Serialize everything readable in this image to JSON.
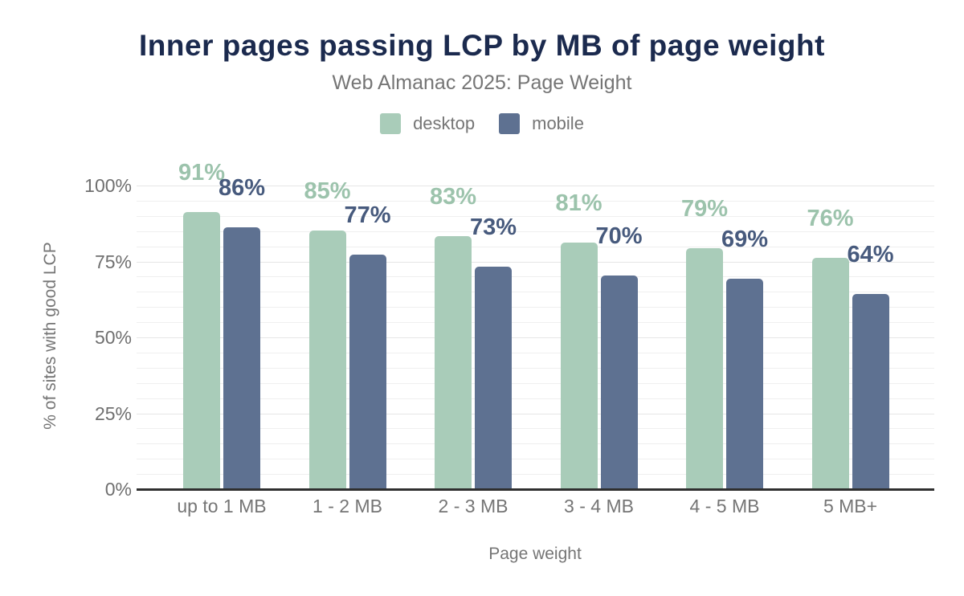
{
  "header": {
    "title": "Inner pages passing LCP by MB of page weight",
    "subtitle": "Web Almanac 2025: Page Weight"
  },
  "legend": {
    "items": [
      {
        "label": "desktop",
        "color": "#a9ccb9"
      },
      {
        "label": "mobile",
        "color": "#5e7191"
      }
    ]
  },
  "chart_data": {
    "type": "bar",
    "title": "Inner pages passing LCP by MB of page weight",
    "subtitle": "Web Almanac 2025: Page Weight",
    "categories": [
      "up to 1 MB",
      "1 - 2 MB",
      "2 - 3 MB",
      "3 - 4 MB",
      "4 - 5 MB",
      "5 MB+"
    ],
    "series": [
      {
        "name": "desktop",
        "color": "#a9ccb9",
        "label_color": "#9cc3ac",
        "values": [
          91,
          85,
          83,
          81,
          79,
          76
        ],
        "data_labels": [
          "91%",
          "85%",
          "83%",
          "81%",
          "79%",
          "76%"
        ]
      },
      {
        "name": "mobile",
        "color": "#5e7191",
        "label_color": "#475a7d",
        "values": [
          86,
          77,
          73,
          70,
          69,
          64
        ],
        "data_labels": [
          "86%",
          "77%",
          "73%",
          "70%",
          "69%",
          "64%"
        ]
      }
    ],
    "xlabel": "Page weight",
    "ylabel": "% of sites with good LCP",
    "ylim": [
      0,
      100
    ],
    "yticks": [
      {
        "value": 0,
        "label": "0%"
      },
      {
        "value": 25,
        "label": "25%"
      },
      {
        "value": 50,
        "label": "50%"
      },
      {
        "value": 75,
        "label": "75%"
      },
      {
        "value": 100,
        "label": "100%"
      }
    ],
    "grid": {
      "minor_step": 5,
      "minor_color": "#efefef",
      "major_color": "#e6e6e6"
    },
    "axis_line_color": "#2f2f2f",
    "legend_position": "top"
  }
}
